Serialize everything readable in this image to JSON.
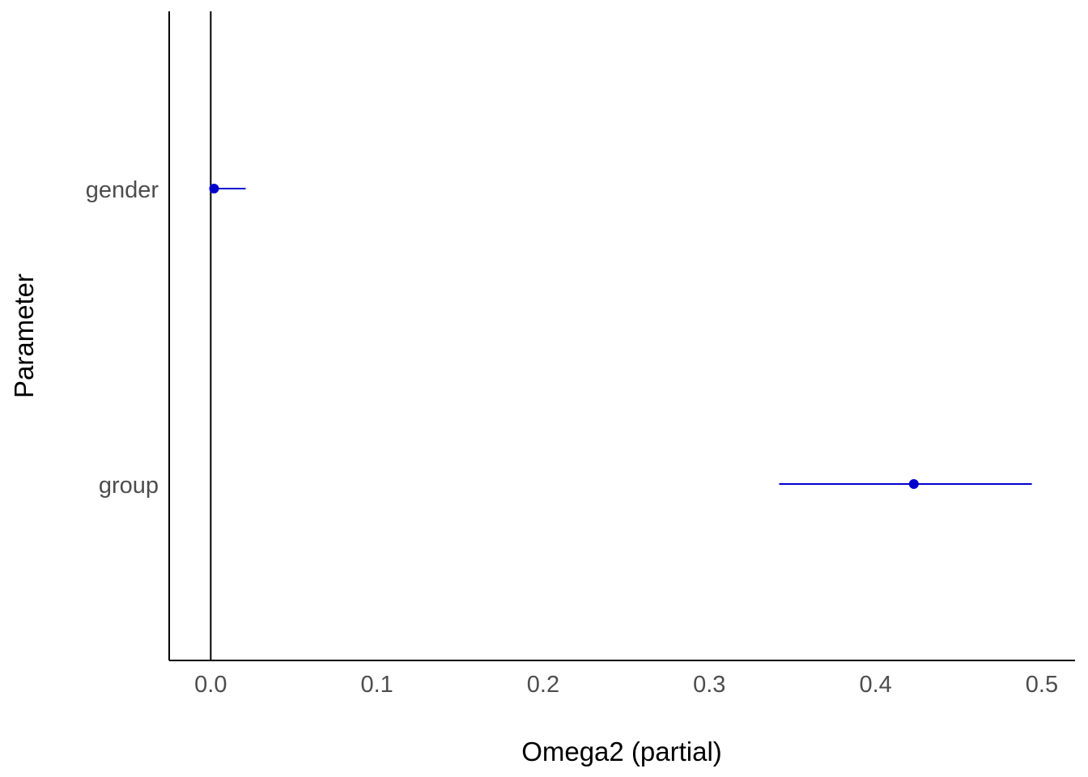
{
  "chart_data": {
    "type": "scatter",
    "xlabel": "Omega2 (partial)",
    "ylabel": "Parameter",
    "xlim": [
      -0.025,
      0.52
    ],
    "x_ticks": [
      "0.0",
      "0.1",
      "0.2",
      "0.3",
      "0.4",
      "0.5"
    ],
    "x_tick_values": [
      0.0,
      0.1,
      0.2,
      0.3,
      0.4,
      0.5
    ],
    "categories": [
      "gender",
      "group"
    ],
    "points": [
      {
        "parameter": "gender",
        "estimate": 0.002,
        "ci_low": 0.0,
        "ci_high": 0.021
      },
      {
        "parameter": "group",
        "estimate": 0.423,
        "ci_low": 0.342,
        "ci_high": 0.494
      }
    ],
    "reference_line_x": 0,
    "grid": false,
    "legend": "none",
    "colors": {
      "point": "#0000cd",
      "errorbar": "#0000cd",
      "axis": "#000000",
      "tick_text": "#4d4d4d"
    }
  }
}
